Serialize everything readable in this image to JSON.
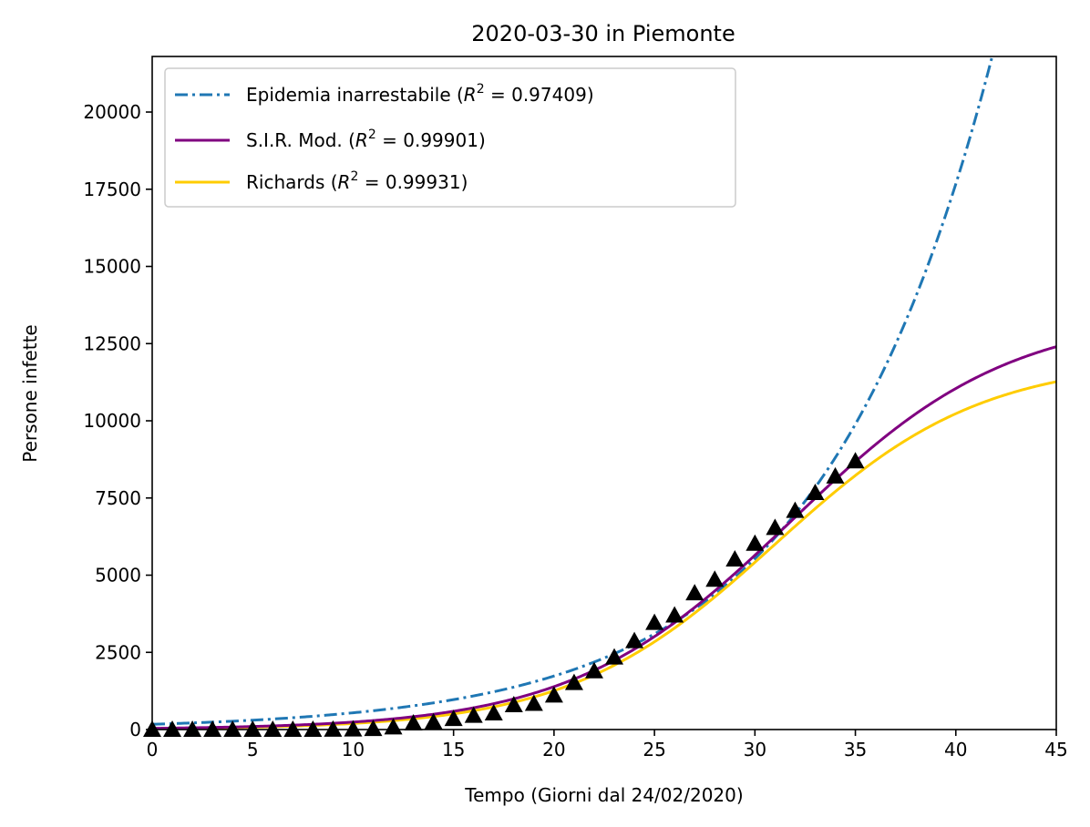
{
  "chart_data": {
    "type": "line",
    "title": "2020-03-30 in Piemonte",
    "xlabel": "Tempo (Giorni dal 24/02/2020)",
    "ylabel": "Persone infette",
    "xlim": [
      0,
      45
    ],
    "ylim": [
      0,
      21800
    ],
    "xticks": [
      0,
      5,
      10,
      15,
      20,
      25,
      30,
      35,
      40,
      45
    ],
    "yticks": [
      0,
      2500,
      5000,
      7500,
      10000,
      12500,
      15000,
      17500,
      20000
    ],
    "grid": false,
    "legend_position": "top-left",
    "colors": {
      "exponential": "#1f77b4",
      "sir": "#800080",
      "richards": "#ffcc00",
      "observed": "#000000"
    },
    "series": [
      {
        "name": "Epidemia inarrestabile",
        "legend_prefix": "Epidemia inarrestabile (",
        "legend_r2": "0.97409",
        "style": "dashdot",
        "model": {
          "kind": "exponential",
          "a": 170,
          "b": 0.1161
        }
      },
      {
        "name": "S.I.R. Mod.",
        "legend_prefix": "S.I.R. Mod. (",
        "legend_r2": "0.99901",
        "style": "solid",
        "model": {
          "kind": "logistic",
          "K": 13500,
          "r": 0.1835,
          "t0": 31.8
        }
      },
      {
        "name": "Richards",
        "legend_prefix": "Richards (",
        "legend_r2": "0.99931",
        "style": "solid",
        "model": {
          "kind": "logistic",
          "K": 12000,
          "r": 0.195,
          "t0": 31.0
        }
      }
    ],
    "observed": {
      "marker": "triangle",
      "x": [
        0,
        1,
        2,
        3,
        4,
        5,
        6,
        7,
        8,
        9,
        10,
        11,
        12,
        13,
        14,
        15,
        16,
        17,
        18,
        19,
        20,
        21,
        22,
        23,
        24,
        25,
        26,
        27,
        28,
        29,
        30,
        31,
        32,
        33,
        34,
        35
      ],
      "y": [
        0,
        0,
        0,
        0,
        0,
        0,
        0,
        0,
        0,
        3,
        11,
        26,
        78,
        207,
        243,
        349,
        453,
        530,
        798,
        840,
        1111,
        1516,
        1897,
        2341,
        2871,
        3461,
        3703,
        4420,
        4861,
        5515,
        6024,
        6536,
        7092,
        7671,
        8206,
        8694
      ]
    }
  }
}
